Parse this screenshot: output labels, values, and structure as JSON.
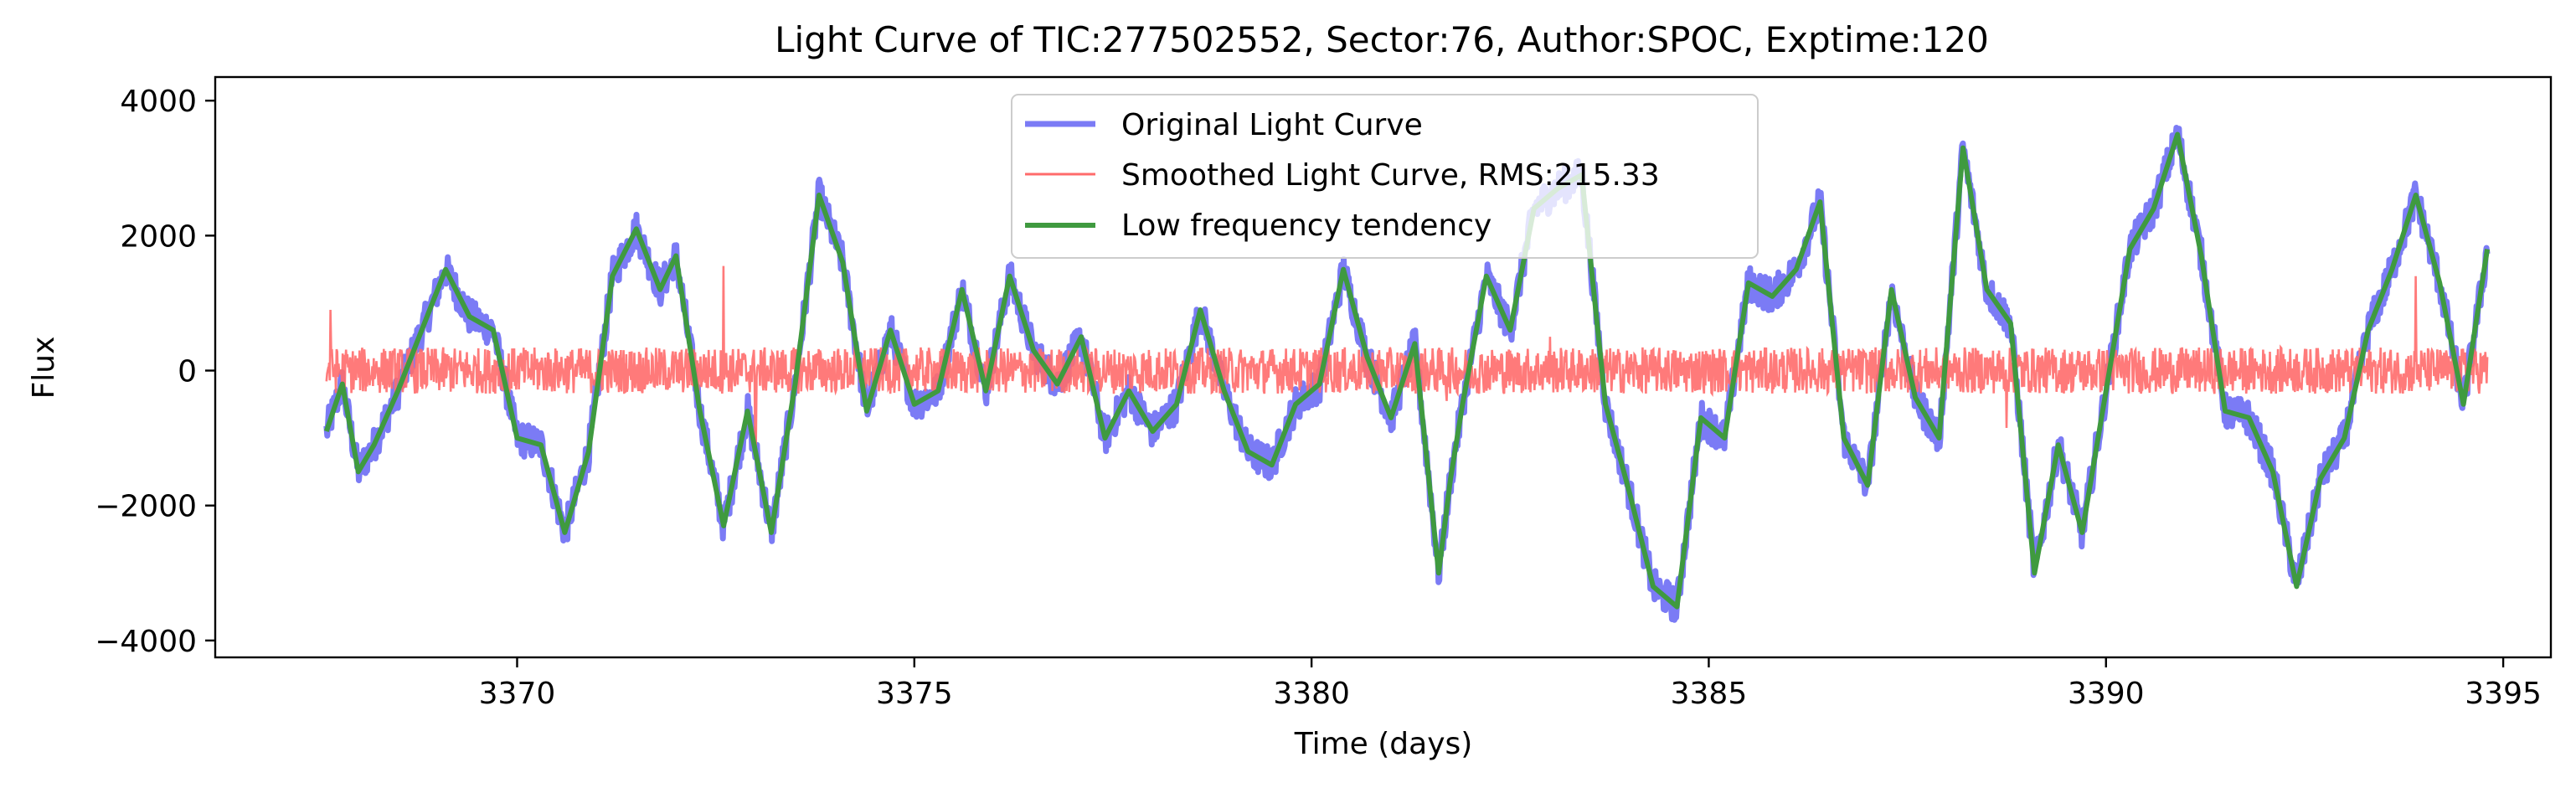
{
  "chart_data": {
    "type": "line",
    "title": "Light Curve of TIC:277502552, Sector:76, Author:SPOC, Exptime:120",
    "xlabel": "Time (days)",
    "ylabel": "Flux",
    "xlim": [
      3366.2,
      3395.6
    ],
    "ylim": [
      -4250,
      4350
    ],
    "xticks": [
      3370,
      3375,
      3380,
      3385,
      3390,
      3395
    ],
    "xtick_labels": [
      "3370",
      "3375",
      "3380",
      "3385",
      "3390",
      "3395"
    ],
    "yticks": [
      -4000,
      -2000,
      0,
      2000,
      4000
    ],
    "ytick_labels": [
      "−4000",
      "−2000",
      "0",
      "2000",
      "4000"
    ],
    "grid": false,
    "legend_position": "top-center",
    "series": [
      {
        "name": "Original Light Curve",
        "color": "#7B7BF5",
        "style": "thick-line",
        "noise_amplitude": 260,
        "x": [
          3367.6,
          3367.8,
          3368.0,
          3368.2,
          3368.5,
          3368.8,
          3369.1,
          3369.4,
          3369.7,
          3370.0,
          3370.3,
          3370.6,
          3370.9,
          3371.2,
          3371.5,
          3371.8,
          3372.0,
          3372.3,
          3372.6,
          3372.9,
          3373.2,
          3373.5,
          3373.8,
          3374.1,
          3374.4,
          3374.7,
          3375.0,
          3375.3,
          3375.6,
          3375.9,
          3376.2,
          3376.5,
          3376.8,
          3377.1,
          3377.4,
          3377.7,
          3378.0,
          3378.3,
          3378.6,
          3378.9,
          3379.2,
          3379.5,
          3379.8,
          3380.1,
          3380.4,
          3380.7,
          3381.0,
          3381.3,
          3381.6,
          3381.75,
          3381.9,
          3382.2,
          3382.5,
          3382.8,
          3383.1,
          3383.4,
          3383.7,
          3384.0,
          3384.3,
          3384.6,
          3384.9,
          3385.2,
          3385.5,
          3385.8,
          3386.1,
          3386.4,
          3386.7,
          3387.0,
          3387.3,
          3387.6,
          3387.9,
          3388.2,
          3388.5,
          3388.8,
          3389.1,
          3389.4,
          3389.7,
          3390.0,
          3390.3,
          3390.6,
          3390.9,
          3391.2,
          3391.5,
          3391.8,
          3392.1,
          3392.4,
          3392.7,
          3393.0,
          3393.3,
          3393.6,
          3393.9,
          3394.2,
          3394.5,
          3394.8
        ],
        "y": [
          -900,
          -200,
          -1500,
          -1100,
          -300,
          600,
          1500,
          800,
          600,
          -1000,
          -1100,
          -2400,
          -1200,
          1400,
          2100,
          1200,
          1700,
          -600,
          -2300,
          -600,
          -2400,
          -200,
          2600,
          1600,
          -600,
          600,
          -500,
          -300,
          1200,
          -300,
          1400,
          300,
          -200,
          500,
          -1000,
          -300,
          -900,
          -500,
          900,
          -300,
          -1200,
          -1400,
          -500,
          -200,
          1500,
          200,
          -700,
          400,
          -3000,
          -1600,
          -500,
          1400,
          600,
          2400,
          2700,
          2900,
          -500,
          -1800,
          -3200,
          -3500,
          -700,
          -1000,
          1300,
          1100,
          1500,
          2500,
          -1000,
          -1700,
          1200,
          -400,
          -1000,
          3300,
          1200,
          700,
          -3000,
          -1100,
          -2400,
          -300,
          1800,
          2400,
          3500,
          1700,
          -600,
          -700,
          -1500,
          -3200,
          -1600,
          -1000,
          600,
          1500,
          2600,
          1300,
          -500,
          1800
        ]
      },
      {
        "name": "Smoothed Light Curve, RMS:215.33",
        "color": "#FF6B6B",
        "style": "noise",
        "rms": 215.33,
        "x_range": [
          3367.6,
          3394.8
        ],
        "spikes": [
          [
            3367.65,
            900
          ],
          [
            3372.6,
            1550
          ],
          [
            3373.0,
            -1150
          ],
          [
            3381.7,
            -450
          ],
          [
            3383.0,
            500
          ],
          [
            3388.75,
            -850
          ],
          [
            3393.9,
            1400
          ]
        ]
      },
      {
        "name": "Low frequency tendency",
        "color": "#3F9A3F",
        "style": "line",
        "x": [
          3367.6,
          3367.8,
          3368.0,
          3368.2,
          3368.5,
          3368.8,
          3369.1,
          3369.4,
          3369.7,
          3370.0,
          3370.3,
          3370.6,
          3370.9,
          3371.2,
          3371.5,
          3371.8,
          3372.0,
          3372.3,
          3372.6,
          3372.9,
          3373.2,
          3373.5,
          3373.8,
          3374.1,
          3374.4,
          3374.7,
          3375.0,
          3375.3,
          3375.6,
          3375.9,
          3376.2,
          3376.5,
          3376.8,
          3377.1,
          3377.4,
          3377.7,
          3378.0,
          3378.3,
          3378.6,
          3378.9,
          3379.2,
          3379.5,
          3379.8,
          3380.1,
          3380.4,
          3380.7,
          3381.0,
          3381.3,
          3381.6,
          3381.75,
          3381.9,
          3382.2,
          3382.5,
          3382.8,
          3383.1,
          3383.4,
          3383.7,
          3384.0,
          3384.3,
          3384.6,
          3384.9,
          3385.2,
          3385.5,
          3385.8,
          3386.1,
          3386.4,
          3386.7,
          3387.0,
          3387.3,
          3387.6,
          3387.9,
          3388.2,
          3388.5,
          3388.8,
          3389.1,
          3389.4,
          3389.7,
          3390.0,
          3390.3,
          3390.6,
          3390.9,
          3391.2,
          3391.5,
          3391.8,
          3392.1,
          3392.4,
          3392.7,
          3393.0,
          3393.3,
          3393.6,
          3393.9,
          3394.2,
          3394.5,
          3394.8
        ],
        "y": [
          -900,
          -200,
          -1500,
          -1100,
          -300,
          600,
          1500,
          800,
          600,
          -1000,
          -1100,
          -2400,
          -1200,
          1400,
          2100,
          1200,
          1700,
          -600,
          -2300,
          -600,
          -2400,
          -200,
          2600,
          1600,
          -600,
          600,
          -500,
          -300,
          1200,
          -300,
          1400,
          300,
          -200,
          500,
          -1000,
          -300,
          -900,
          -500,
          900,
          -300,
          -1200,
          -1400,
          -500,
          -200,
          1500,
          200,
          -700,
          400,
          -3000,
          -1600,
          -500,
          1400,
          600,
          2400,
          2700,
          2900,
          -500,
          -1800,
          -3200,
          -3500,
          -700,
          -1000,
          1300,
          1100,
          1500,
          2500,
          -1000,
          -1700,
          1200,
          -400,
          -1000,
          3300,
          1200,
          700,
          -3000,
          -1100,
          -2400,
          -300,
          1800,
          2400,
          3500,
          1700,
          -600,
          -700,
          -1500,
          -3200,
          -1600,
          -1000,
          600,
          1500,
          2600,
          1300,
          -500,
          1800
        ]
      }
    ]
  }
}
